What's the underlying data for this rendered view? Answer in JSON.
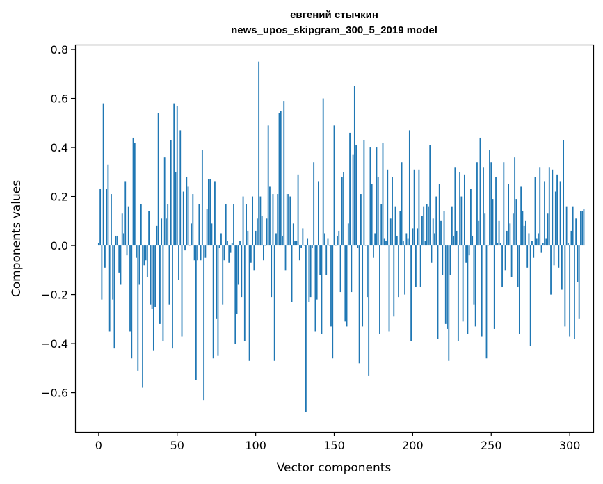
{
  "chart_data": {
    "type": "bar",
    "title_line1": "евгений стычкин",
    "title_line2": "news_upos_skipgram_300_5_2019 model",
    "xlabel": "Vector components",
    "ylabel": "Components values",
    "xlim": [
      -15,
      315
    ],
    "ylim": [
      -0.76,
      0.82
    ],
    "xticks": [
      0,
      50,
      100,
      150,
      200,
      250,
      300
    ],
    "xtick_labels": [
      "0",
      "50",
      "100",
      "150",
      "200",
      "250",
      "300"
    ],
    "yticks": [
      -0.6,
      -0.4,
      -0.2,
      0.0,
      0.2,
      0.4,
      0.6,
      0.8
    ],
    "ytick_labels": [
      "−0.6",
      "−0.4",
      "−0.2",
      "0.0",
      "0.2",
      "0.4",
      "0.6",
      "0.8"
    ],
    "bar_color": "#1f77b4",
    "values": [
      0.01,
      0.23,
      -0.22,
      0.58,
      -0.09,
      0.23,
      0.33,
      -0.35,
      0.21,
      -0.22,
      -0.42,
      0.04,
      0.04,
      -0.11,
      -0.16,
      0.13,
      0.05,
      0.26,
      -0.04,
      0.16,
      -0.35,
      -0.46,
      0.44,
      0.42,
      -0.05,
      -0.51,
      -0.16,
      0.17,
      -0.58,
      -0.08,
      -0.06,
      -0.13,
      0.14,
      -0.24,
      -0.26,
      -0.43,
      -0.25,
      0.08,
      0.54,
      -0.32,
      0.11,
      -0.39,
      0.36,
      0.11,
      0.17,
      -0.24,
      0.43,
      -0.42,
      0.58,
      0.3,
      0.57,
      -0.14,
      0.47,
      -0.37,
      0.22,
      -0.02,
      0.28,
      0.24,
      0.0,
      0.09,
      0.21,
      -0.06,
      -0.55,
      -0.06,
      0.17,
      -0.06,
      0.39,
      -0.63,
      -0.05,
      0.15,
      0.27,
      0.27,
      0.09,
      -0.46,
      0.26,
      -0.3,
      -0.45,
      -0.01,
      0.05,
      -0.24,
      -0.06,
      0.17,
      0.02,
      -0.07,
      -0.03,
      0.01,
      0.17,
      -0.4,
      -0.28,
      -0.16,
      0.02,
      -0.21,
      0.2,
      -0.39,
      0.17,
      0.06,
      -0.47,
      -0.07,
      0.2,
      -0.1,
      0.06,
      0.11,
      0.75,
      0.2,
      0.12,
      -0.06,
      0.0,
      0.11,
      0.49,
      0.24,
      -0.21,
      0.21,
      -0.47,
      0.05,
      0.21,
      0.54,
      0.55,
      0.04,
      0.59,
      -0.1,
      0.21,
      0.21,
      0.2,
      -0.23,
      0.09,
      0.02,
      0.02,
      0.29,
      -0.06,
      -0.01,
      0.07,
      0.0,
      -0.68,
      0.03,
      -0.23,
      -0.21,
      -0.01,
      0.34,
      -0.35,
      -0.22,
      0.26,
      -0.12,
      -0.36,
      0.6,
      0.05,
      -0.12,
      0.03,
      0.0,
      -0.33,
      -0.46,
      0.49,
      0.0,
      0.04,
      0.06,
      -0.19,
      0.28,
      0.3,
      -0.31,
      -0.33,
      0.09,
      0.46,
      -0.19,
      0.37,
      0.65,
      0.41,
      -0.01,
      -0.48,
      0.21,
      -0.33,
      0.43,
      0.0,
      -0.21,
      -0.53,
      0.4,
      0.25,
      -0.05,
      0.05,
      0.4,
      0.28,
      -0.36,
      0.17,
      0.42,
      0.03,
      0.02,
      0.31,
      -0.35,
      0.11,
      0.28,
      -0.29,
      0.16,
      0.04,
      -0.21,
      0.14,
      0.34,
      0.02,
      -0.2,
      0.05,
      0.03,
      0.47,
      -0.39,
      0.07,
      0.31,
      -0.17,
      0.07,
      0.31,
      -0.17,
      0.12,
      0.16,
      0.02,
      0.17,
      0.16,
      0.41,
      -0.07,
      0.11,
      0.05,
      0.2,
      -0.38,
      0.25,
      0.1,
      -0.12,
      0.14,
      -0.32,
      -0.34,
      -0.47,
      -0.12,
      0.16,
      0.04,
      0.32,
      0.06,
      -0.39,
      0.3,
      0.2,
      -0.31,
      0.29,
      -0.07,
      -0.36,
      -0.04,
      0.23,
      0.04,
      -0.24,
      -0.33,
      0.34,
      0.1,
      0.44,
      -0.37,
      0.32,
      0.13,
      -0.46,
      0.0,
      0.39,
      0.34,
      0.19,
      -0.34,
      0.28,
      0.01,
      0.1,
      0.01,
      -0.17,
      0.34,
      -0.1,
      0.06,
      0.25,
      0.09,
      -0.13,
      0.13,
      0.36,
      0.19,
      -0.17,
      -0.36,
      0.24,
      0.14,
      0.08,
      0.1,
      -0.09,
      0.05,
      -0.41,
      0.02,
      -0.05,
      0.28,
      0.03,
      0.05,
      0.32,
      -0.03,
      0.01,
      0.26,
      0.03,
      0.13,
      0.32,
      -0.2,
      0.31,
      -0.08,
      0.22,
      0.29,
      -0.09,
      0.26,
      -0.18,
      0.43,
      -0.33,
      0.16,
      0.01,
      -0.37,
      0.06,
      0.16,
      -0.38,
      0.11,
      -0.15,
      -0.3,
      0.14,
      0.14,
      0.15
    ]
  }
}
